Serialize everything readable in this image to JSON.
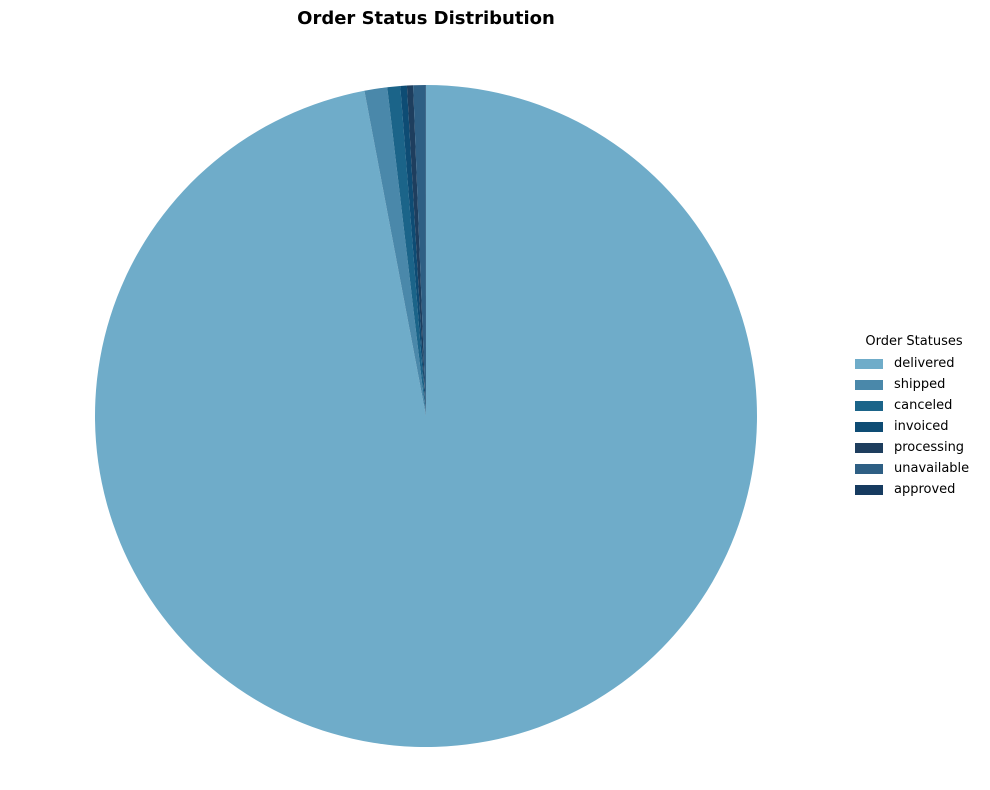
{
  "chart_data": {
    "type": "pie",
    "title": "Order Status Distribution",
    "legend_title": "Order Statuses",
    "legend_placement": "right",
    "start_angle_deg": 90,
    "direction": "clockwise",
    "slices": [
      {
        "label": "delivered",
        "value": 97.02,
        "color": "#6FACC9"
      },
      {
        "label": "shipped",
        "value": 1.11,
        "color": "#4A88AA"
      },
      {
        "label": "canceled",
        "value": 0.63,
        "color": "#1B6489"
      },
      {
        "label": "invoiced",
        "value": 0.32,
        "color": "#0E4C74"
      },
      {
        "label": "processing",
        "value": 0.3,
        "color": "#1E3E5E"
      },
      {
        "label": "unavailable",
        "value": 0.61,
        "color": "#2E5F84"
      },
      {
        "label": "approved",
        "value": 0.01,
        "color": "#163B60"
      }
    ]
  }
}
